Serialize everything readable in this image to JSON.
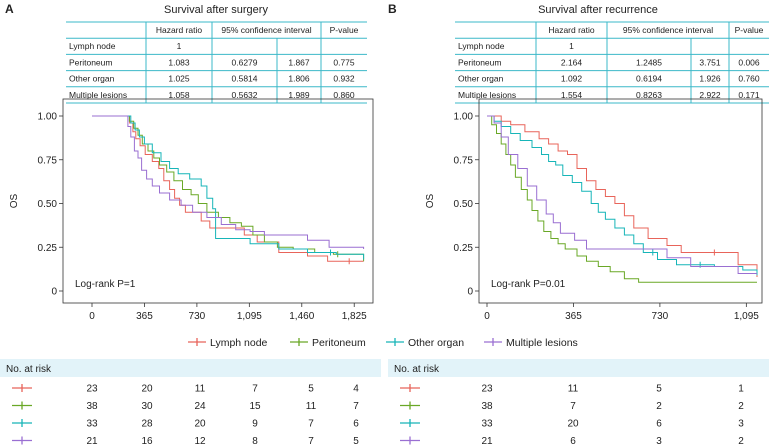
{
  "colors": {
    "lymph": "#e8645a",
    "perit": "#6aa827",
    "other": "#17b5b8",
    "multi": "#9a6fd2",
    "table_line": "#3bb8c8",
    "risk_bg": "#e2f3f9"
  },
  "legend": {
    "items": [
      {
        "label": "Lymph node",
        "color_key": "lymph"
      },
      {
        "label": "Peritoneum",
        "color_key": "perit"
      },
      {
        "label": "Other organ",
        "color_key": "other"
      },
      {
        "label": "Multiple lesions",
        "color_key": "multi"
      }
    ]
  },
  "panels": [
    {
      "letter": "A",
      "title": "Survival after surgery",
      "table": {
        "headers": [
          "",
          "Hazard ratio",
          "95% confidence interval",
          "",
          "P-value"
        ],
        "rows": [
          [
            "Lymph node",
            "1",
            "",
            "",
            ""
          ],
          [
            "Peritoneum",
            "1.083",
            "0.6279",
            "1.867",
            "0.775"
          ],
          [
            "Other organ",
            "1.025",
            "0.5814",
            "1.806",
            "0.932"
          ],
          [
            "Multiple lesions",
            "1.058",
            "0.5632",
            "1.989",
            "0.860"
          ]
        ]
      },
      "ylabel": "OS",
      "logrank": "Log-rank P=1",
      "y_ticks": [
        "1.00",
        "0.75",
        "0.50",
        "0.25",
        "0"
      ],
      "x_tick_labels": [
        "0",
        "365",
        "730",
        "1,095",
        "1,460",
        "1,825"
      ],
      "risk": {
        "title": "No. at risk",
        "rows": [
          [
            "23",
            "20",
            "11",
            "7",
            "5",
            "4"
          ],
          [
            "38",
            "30",
            "24",
            "15",
            "11",
            "7"
          ],
          [
            "33",
            "28",
            "20",
            "9",
            "7",
            "6"
          ],
          [
            "21",
            "16",
            "12",
            "8",
            "7",
            "5"
          ]
        ]
      }
    },
    {
      "letter": "B",
      "title": "Survival after recurrence",
      "table": {
        "headers": [
          "",
          "Hazard ratio",
          "95% confidence interval",
          "",
          "P-value"
        ],
        "rows": [
          [
            "Lymph node",
            "1",
            "",
            "",
            ""
          ],
          [
            "Peritoneum",
            "2.164",
            "1.2485",
            "3.751",
            "0.006"
          ],
          [
            "Other organ",
            "1.092",
            "0.6194",
            "1.926",
            "0.760"
          ],
          [
            "Multiple lesions",
            "1.554",
            "0.8263",
            "2.922",
            "0.171"
          ]
        ]
      },
      "ylabel": "OS",
      "logrank": "Log-rank P=0.01",
      "y_ticks": [
        "1.00",
        "0.75",
        "0.50",
        "0.25",
        "0"
      ],
      "x_tick_labels": [
        "0",
        "365",
        "730",
        "1,095"
      ],
      "risk": {
        "title": "No. at risk",
        "rows": [
          [
            "23",
            "11",
            "5",
            "1"
          ],
          [
            "38",
            "7",
            "2",
            "2"
          ],
          [
            "33",
            "20",
            "6",
            "3"
          ],
          [
            "21",
            "6",
            "3",
            "2"
          ]
        ]
      }
    }
  ],
  "chart_data": [
    {
      "type": "line",
      "title": "Survival after surgery",
      "xlabel": "",
      "ylabel": "OS",
      "xlim": [
        0,
        1900
      ],
      "ylim": [
        0,
        1
      ],
      "x_ticks": [
        0,
        365,
        730,
        1095,
        1460,
        1825
      ],
      "y_ticks": [
        0,
        0.25,
        0.5,
        0.75,
        1.0
      ],
      "series": [
        {
          "name": "Lymph node",
          "color_key": "lymph",
          "step": [
            [
              0,
              1
            ],
            [
              240,
              1
            ],
            [
              262,
              0.96
            ],
            [
              285,
              0.91
            ],
            [
              305,
              0.87
            ],
            [
              335,
              0.83
            ],
            [
              370,
              0.78
            ],
            [
              420,
              0.74
            ],
            [
              465,
              0.7
            ],
            [
              500,
              0.63
            ],
            [
              540,
              0.58
            ],
            [
              575,
              0.53
            ],
            [
              610,
              0.49
            ],
            [
              650,
              0.45
            ],
            [
              720,
              0.45
            ],
            [
              760,
              0.4
            ],
            [
              820,
              0.36
            ],
            [
              900,
              0.36
            ],
            [
              1060,
              0.32
            ],
            [
              1150,
              0.28
            ],
            [
              1300,
              0.22
            ],
            [
              1500,
              0.2
            ],
            [
              1640,
              0.17
            ],
            [
              1890,
              0.17
            ]
          ],
          "censor_x": [
            1790
          ]
        },
        {
          "name": "Peritoneum",
          "color_key": "perit",
          "step": [
            [
              0,
              1
            ],
            [
              235,
              1
            ],
            [
              260,
              0.97
            ],
            [
              290,
              0.93
            ],
            [
              320,
              0.89
            ],
            [
              350,
              0.84
            ],
            [
              390,
              0.8
            ],
            [
              430,
              0.76
            ],
            [
              470,
              0.72
            ],
            [
              520,
              0.68
            ],
            [
              570,
              0.63
            ],
            [
              630,
              0.58
            ],
            [
              690,
              0.55
            ],
            [
              740,
              0.5
            ],
            [
              800,
              0.45
            ],
            [
              880,
              0.42
            ],
            [
              960,
              0.39
            ],
            [
              1040,
              0.37
            ],
            [
              1120,
              0.32
            ],
            [
              1200,
              0.28
            ],
            [
              1290,
              0.25
            ],
            [
              1400,
              0.24
            ],
            [
              1550,
              0.22
            ],
            [
              1680,
              0.21
            ],
            [
              1890,
              0.17
            ]
          ],
          "censor_x": [
            1710
          ]
        },
        {
          "name": "Other organ",
          "color_key": "other",
          "step": [
            [
              0,
              1
            ],
            [
              245,
              1
            ],
            [
              270,
              0.96
            ],
            [
              300,
              0.92
            ],
            [
              330,
              0.88
            ],
            [
              365,
              0.84
            ],
            [
              420,
              0.79
            ],
            [
              480,
              0.74
            ],
            [
              540,
              0.7
            ],
            [
              600,
              0.67
            ],
            [
              680,
              0.64
            ],
            [
              760,
              0.6
            ],
            [
              800,
              0.53
            ],
            [
              840,
              0.47
            ],
            [
              860,
              0.3
            ],
            [
              1000,
              0.3
            ],
            [
              1100,
              0.27
            ],
            [
              1300,
              0.24
            ],
            [
              1500,
              0.22
            ],
            [
              1700,
              0.21
            ],
            [
              1890,
              0.18
            ]
          ],
          "censor_x": [
            1660
          ]
        },
        {
          "name": "Multiple lesions",
          "color_key": "multi",
          "step": [
            [
              0,
              1
            ],
            [
              230,
              1
            ],
            [
              250,
              0.94
            ],
            [
              270,
              0.88
            ],
            [
              295,
              0.8
            ],
            [
              320,
              0.76
            ],
            [
              345,
              0.69
            ],
            [
              380,
              0.64
            ],
            [
              420,
              0.6
            ],
            [
              470,
              0.56
            ],
            [
              540,
              0.52
            ],
            [
              620,
              0.49
            ],
            [
              700,
              0.45
            ],
            [
              800,
              0.42
            ],
            [
              900,
              0.38
            ],
            [
              1000,
              0.35
            ],
            [
              1100,
              0.34
            ],
            [
              1200,
              0.32
            ],
            [
              1350,
              0.32
            ],
            [
              1500,
              0.29
            ],
            [
              1650,
              0.25
            ],
            [
              1890,
              0.24
            ]
          ],
          "censor_x": []
        }
      ]
    },
    {
      "type": "line",
      "title": "Survival after recurrence",
      "xlabel": "",
      "ylabel": "OS",
      "xlim": [
        0,
        1140
      ],
      "ylim": [
        0,
        1
      ],
      "x_ticks": [
        0,
        365,
        730,
        1095
      ],
      "y_ticks": [
        0,
        0.25,
        0.5,
        0.75,
        1.0
      ],
      "series": [
        {
          "name": "Lymph node",
          "color_key": "lymph",
          "step": [
            [
              0,
              1
            ],
            [
              60,
              0.97
            ],
            [
              100,
              0.95
            ],
            [
              160,
              0.91
            ],
            [
              220,
              0.87
            ],
            [
              260,
              0.84
            ],
            [
              300,
              0.8
            ],
            [
              340,
              0.78
            ],
            [
              380,
              0.7
            ],
            [
              420,
              0.63
            ],
            [
              460,
              0.58
            ],
            [
              500,
              0.54
            ],
            [
              540,
              0.5
            ],
            [
              580,
              0.43
            ],
            [
              620,
              0.36
            ],
            [
              680,
              0.3
            ],
            [
              760,
              0.26
            ],
            [
              820,
              0.22
            ],
            [
              1060,
              0.15
            ],
            [
              1140,
              0.08
            ]
          ],
          "censor_x": [
            960
          ]
        },
        {
          "name": "Peritoneum",
          "color_key": "perit",
          "step": [
            [
              0,
              1
            ],
            [
              20,
              0.95
            ],
            [
              40,
              0.9
            ],
            [
              60,
              0.84
            ],
            [
              80,
              0.78
            ],
            [
              100,
              0.72
            ],
            [
              120,
              0.65
            ],
            [
              145,
              0.58
            ],
            [
              170,
              0.52
            ],
            [
              190,
              0.46
            ],
            [
              215,
              0.4
            ],
            [
              240,
              0.34
            ],
            [
              270,
              0.3
            ],
            [
              300,
              0.27
            ],
            [
              330,
              0.24
            ],
            [
              380,
              0.2
            ],
            [
              420,
              0.17
            ],
            [
              470,
              0.14
            ],
            [
              520,
              0.11
            ],
            [
              580,
              0.07
            ],
            [
              640,
              0.05
            ],
            [
              1140,
              0.05
            ]
          ],
          "censor_x": []
        },
        {
          "name": "Other organ",
          "color_key": "other",
          "step": [
            [
              0,
              1
            ],
            [
              30,
              0.97
            ],
            [
              60,
              0.94
            ],
            [
              100,
              0.9
            ],
            [
              140,
              0.86
            ],
            [
              190,
              0.82
            ],
            [
              230,
              0.78
            ],
            [
              260,
              0.74
            ],
            [
              290,
              0.72
            ],
            [
              320,
              0.66
            ],
            [
              360,
              0.62
            ],
            [
              400,
              0.57
            ],
            [
              440,
              0.5
            ],
            [
              470,
              0.45
            ],
            [
              500,
              0.41
            ],
            [
              540,
              0.36
            ],
            [
              580,
              0.32
            ],
            [
              620,
              0.27
            ],
            [
              660,
              0.22
            ],
            [
              720,
              0.18
            ],
            [
              800,
              0.15
            ],
            [
              960,
              0.14
            ],
            [
              1080,
              0.12
            ],
            [
              1140,
              0.09
            ]
          ],
          "censor_x": [
            700,
            900
          ]
        },
        {
          "name": "Multiple lesions",
          "color_key": "multi",
          "step": [
            [
              0,
              1
            ],
            [
              30,
              0.96
            ],
            [
              60,
              0.88
            ],
            [
              90,
              0.78
            ],
            [
              130,
              0.7
            ],
            [
              170,
              0.6
            ],
            [
              210,
              0.52
            ],
            [
              250,
              0.44
            ],
            [
              280,
              0.39
            ],
            [
              310,
              0.33
            ],
            [
              370,
              0.29
            ],
            [
              420,
              0.24
            ],
            [
              480,
              0.24
            ],
            [
              600,
              0.24
            ],
            [
              700,
              0.24
            ],
            [
              760,
              0.19
            ],
            [
              860,
              0.14
            ],
            [
              1060,
              0.1
            ],
            [
              1140,
              0.1
            ]
          ],
          "censor_x": []
        }
      ]
    }
  ]
}
